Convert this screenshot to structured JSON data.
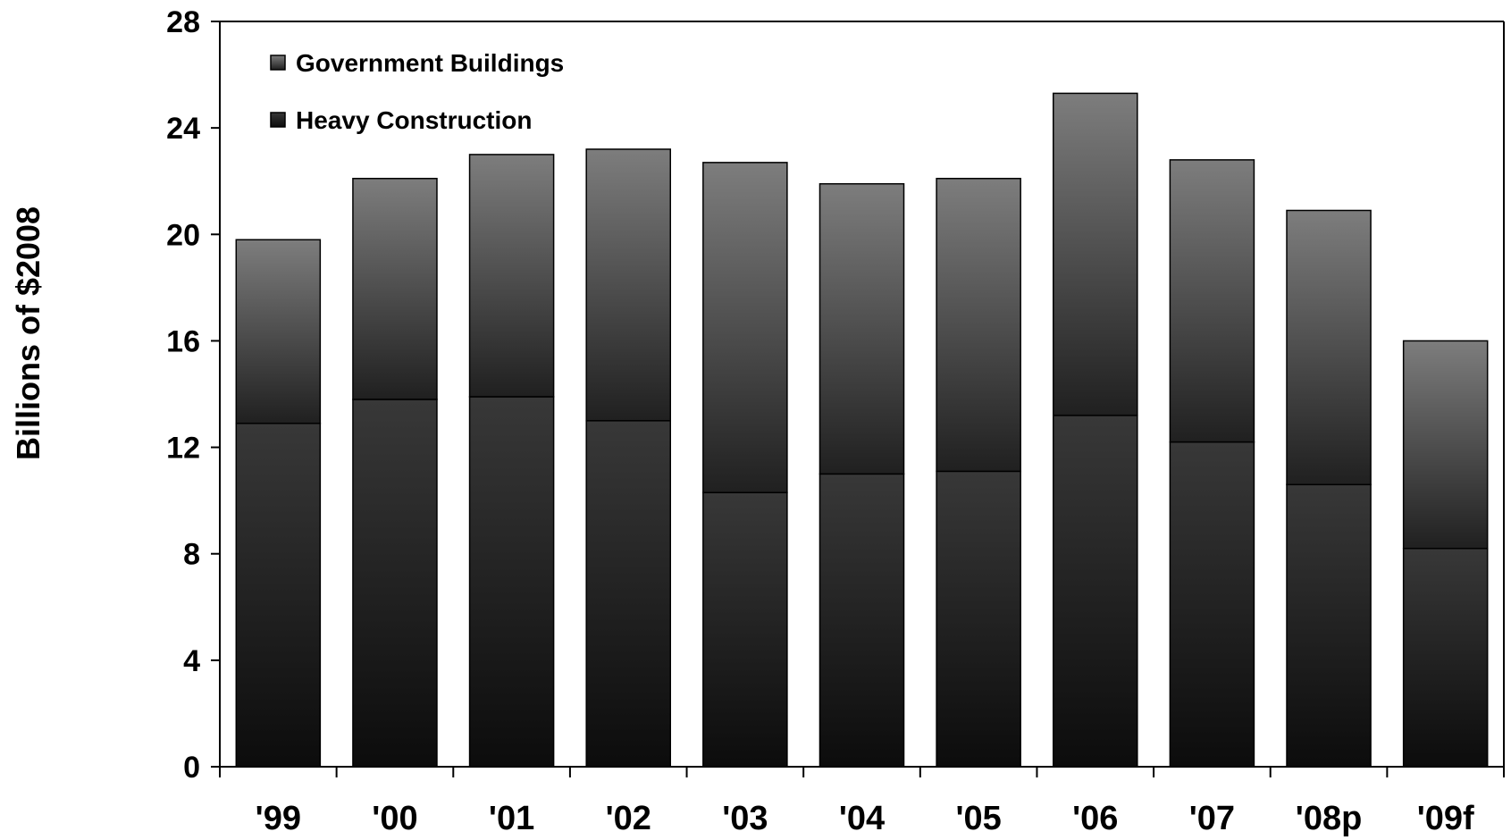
{
  "chart_data": {
    "type": "bar",
    "stacked": true,
    "categories": [
      "'99",
      "'00",
      "'01",
      "'02",
      "'03",
      "'04",
      "'05",
      "'06",
      "'07",
      "'08p",
      "'09f"
    ],
    "series": [
      {
        "name": "Heavy Construction",
        "values": [
          12.9,
          13.8,
          13.9,
          13.0,
          10.3,
          11.0,
          11.1,
          13.2,
          12.2,
          10.6,
          8.2
        ]
      },
      {
        "name": "Government Buildings",
        "values": [
          6.9,
          8.3,
          9.1,
          10.2,
          12.4,
          10.9,
          11.0,
          12.1,
          10.6,
          10.3,
          7.8
        ]
      }
    ],
    "ylabel": "Billions of $2008",
    "xlabel": "",
    "ylim": [
      0,
      28
    ],
    "yticks": [
      0,
      4,
      8,
      12,
      16,
      20,
      24,
      28
    ],
    "legend_position": "top-left",
    "grid": false,
    "colors": {
      "government_top": "#7d7d7d",
      "government_bottom": "#202020",
      "heavy_top": "#383838",
      "heavy_bottom": "#0c0c0c",
      "outline": "#000000"
    }
  }
}
